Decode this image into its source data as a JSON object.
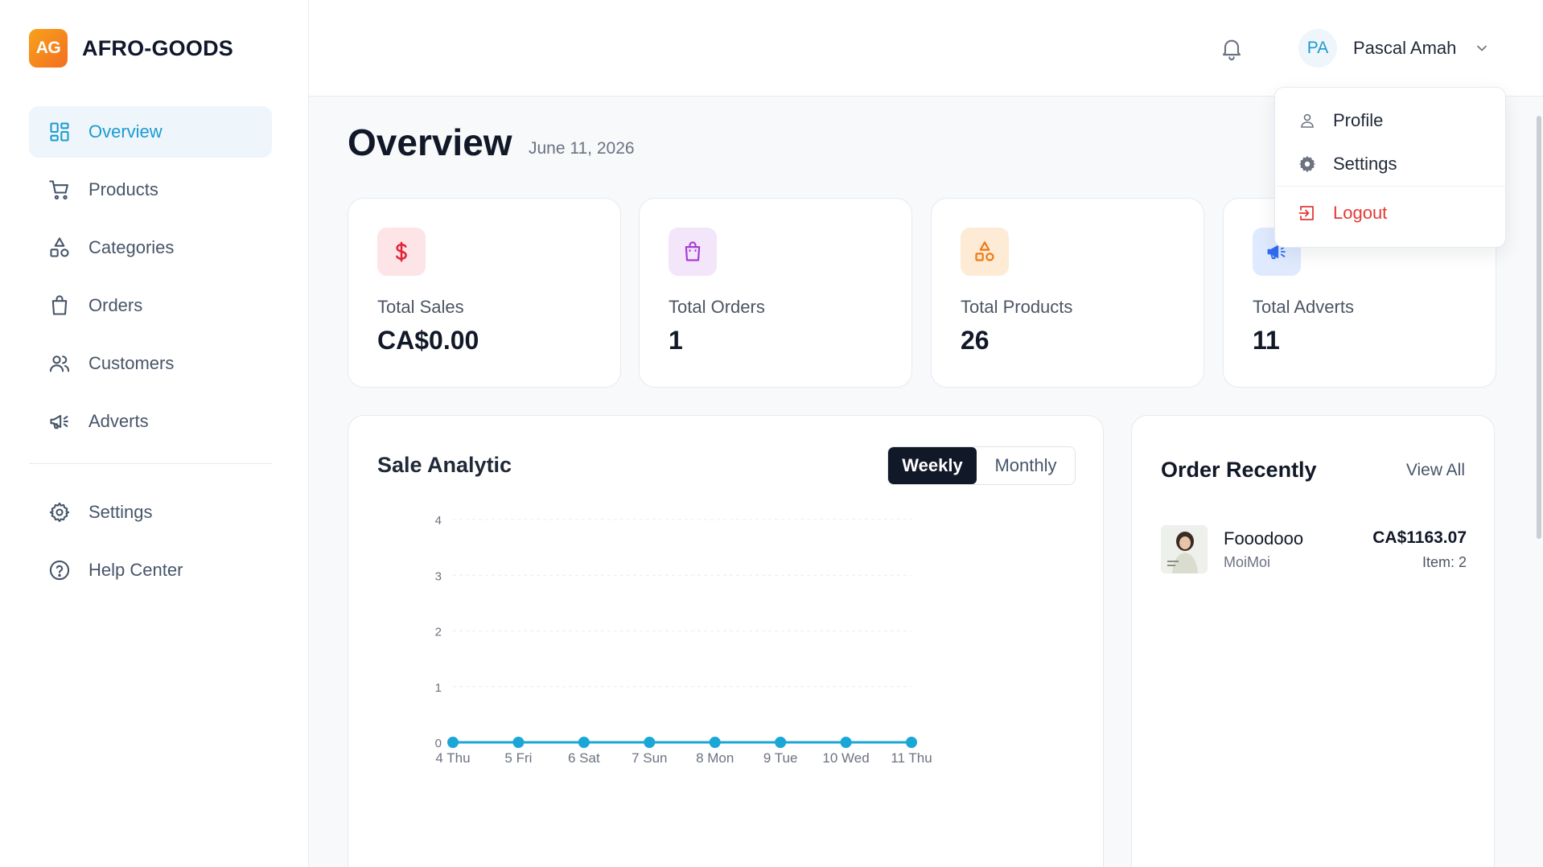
{
  "brand": {
    "logo": "AG",
    "name": "AFRO-GOODS"
  },
  "sidebar": {
    "items": [
      {
        "label": "Overview",
        "icon": "dashboard-icon",
        "active": true
      },
      {
        "label": "Products",
        "icon": "cart-icon"
      },
      {
        "label": "Categories",
        "icon": "shapes-icon"
      },
      {
        "label": "Orders",
        "icon": "shopping-bag-icon"
      },
      {
        "label": "Customers",
        "icon": "users-icon"
      },
      {
        "label": "Adverts",
        "icon": "megaphone-icon"
      }
    ],
    "footer_items": [
      {
        "label": "Settings",
        "icon": "gear-icon"
      },
      {
        "label": "Help Center",
        "icon": "help-icon"
      }
    ]
  },
  "header": {
    "user": {
      "initials": "PA",
      "name": "Pascal Amah"
    }
  },
  "user_menu": {
    "profile": "Profile",
    "settings": "Settings",
    "logout": "Logout",
    "colors": {
      "logout": "#e53935"
    }
  },
  "page": {
    "title": "Overview",
    "date": "June 11, 2026"
  },
  "stats": [
    {
      "label": "Total Sales",
      "value": "CA$0.00",
      "icon": "dollar-icon",
      "bg": "#fde4e6",
      "color": "#e0253b"
    },
    {
      "label": "Total Orders",
      "value": "1",
      "icon": "shopping-bag-icon",
      "bg": "#f3e6fb",
      "color": "#a53fd6"
    },
    {
      "label": "Total Products",
      "value": "26",
      "icon": "shapes-icon",
      "bg": "#fdebd6",
      "color": "#ef7a13"
    },
    {
      "label": "Total Adverts",
      "value": "11",
      "icon": "megaphone-icon",
      "bg": "#dfeaff",
      "color": "#2e6df2"
    }
  ],
  "analytic": {
    "title": "Sale Analytic",
    "toggle": {
      "weekly": "Weekly",
      "monthly": "Monthly",
      "selected": "Weekly"
    }
  },
  "chart_data": {
    "type": "line",
    "categories": [
      "4 Thu",
      "5 Fri",
      "6 Sat",
      "7 Sun",
      "8 Mon",
      "9 Tue",
      "10 Wed",
      "11 Thu"
    ],
    "series": [
      {
        "values": [
          0,
          0,
          0,
          0,
          0,
          0,
          0,
          0
        ],
        "color": "#1aa6d6"
      }
    ],
    "yticks": [
      0,
      1,
      2,
      3,
      4
    ],
    "ylim": [
      0,
      4
    ],
    "grid": true,
    "xlabel": "",
    "ylabel": ""
  },
  "orders": {
    "title": "Order Recently",
    "view_all": "View All",
    "items": [
      {
        "name": "Fooodooo",
        "customer": "MoiMoi",
        "price": "CA$1163.07",
        "items": "Item: 2"
      }
    ]
  },
  "colors": {
    "accent": "#1b9bd1",
    "dark": "#111827"
  }
}
